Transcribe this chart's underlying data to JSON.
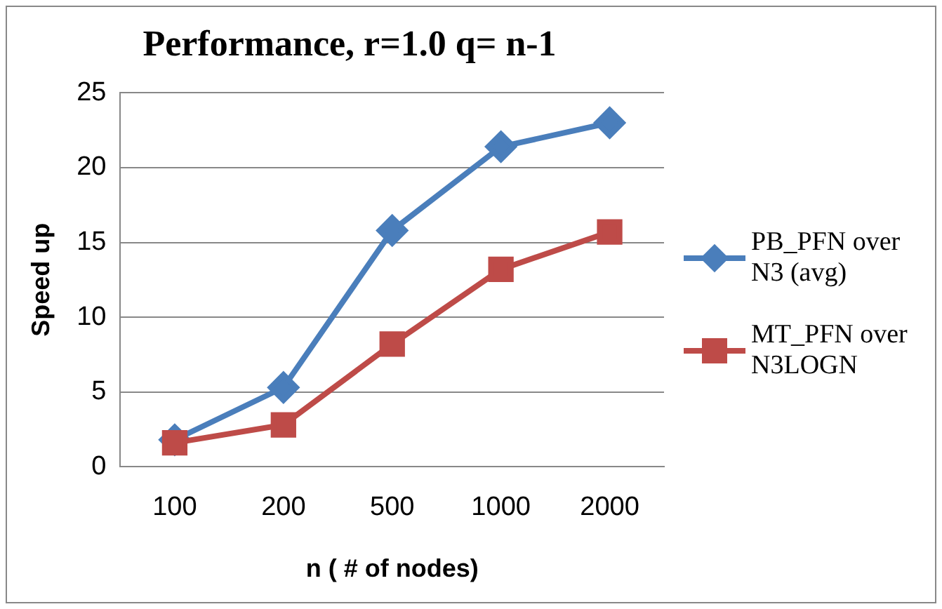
{
  "chart_data": {
    "type": "line",
    "title": "Performance, r=1.0 q= n-1",
    "xlabel": "n ( # of nodes)",
    "ylabel": "Speed up",
    "categories": [
      "100",
      "200",
      "500",
      "1000",
      "2000"
    ],
    "series": [
      {
        "name": "PB_PFN over N3 (avg)",
        "color": "#4a7ebb",
        "marker": "diamond",
        "values": [
          1.8,
          5.3,
          15.8,
          21.4,
          23.0
        ]
      },
      {
        "name": "MT_PFN over N3LOGN",
        "color": "#be4b48",
        "marker": "square",
        "values": [
          1.6,
          2.8,
          8.2,
          13.2,
          15.7
        ]
      }
    ],
    "ylim": [
      0,
      25
    ],
    "yticks": [
      0,
      5,
      10,
      15,
      20,
      25
    ],
    "grid": "y",
    "legend": "right"
  }
}
